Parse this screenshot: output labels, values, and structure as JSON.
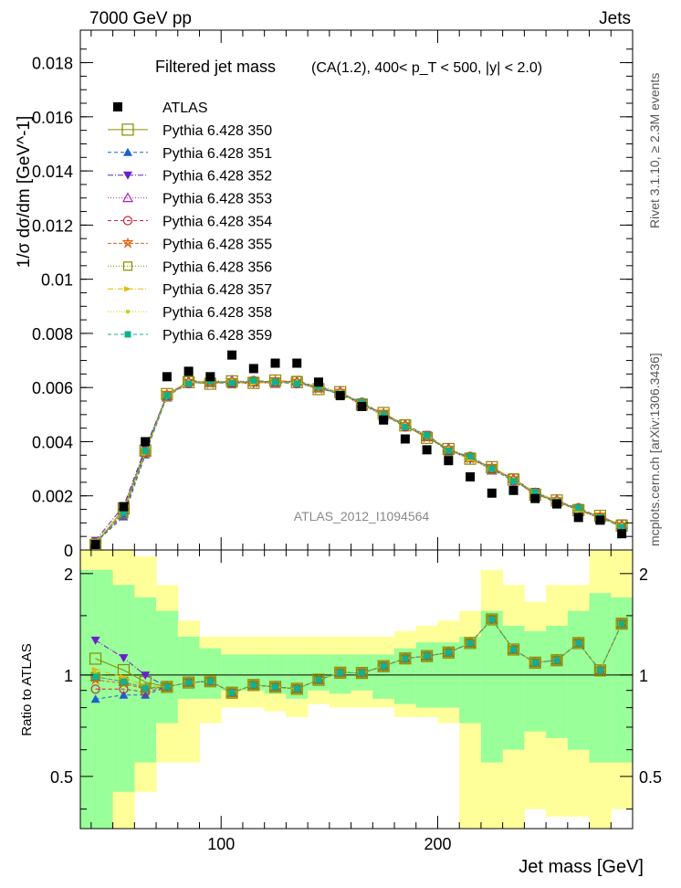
{
  "header": {
    "left": "7000 GeV pp",
    "right": "Jets",
    "side_rivet": "Rivet 3.1.10, ≥ 2.3M events",
    "side_mcplots": "mcplots.cern.ch [arXiv:1306.3436]"
  },
  "chart_data": {
    "type": "scatter",
    "title_main": "Filtered jet mass",
    "title_sub": "(CA(1.2), 400< p_T < 500, |y| < 2.0)",
    "watermark": "ATLAS_2012_I1094564",
    "xlabel": "Jet mass [GeV]",
    "ylabel": "1/σ dσ/dm [GeV^-1]",
    "ratio_ylabel": "Ratio to ATLAS",
    "xlim": [
      35,
      290
    ],
    "ylim": [
      0,
      0.0192
    ],
    "ratio_ylim": [
      0.35,
      2.35
    ],
    "x_ticks": [
      "100",
      "200"
    ],
    "y_ticks": [
      "0",
      "0.002",
      "0.004",
      "0.006",
      "0.008",
      "0.01",
      "0.012",
      "0.014",
      "0.016",
      "0.018"
    ],
    "ratio_ticks": [
      "0.5",
      "1",
      "2"
    ],
    "legend_placement": "top-left",
    "bins": [
      [
        35,
        50
      ],
      [
        50,
        60
      ],
      [
        60,
        70
      ],
      [
        70,
        80
      ],
      [
        80,
        90
      ],
      [
        90,
        100
      ],
      [
        100,
        110
      ],
      [
        110,
        120
      ],
      [
        120,
        130
      ],
      [
        130,
        140
      ],
      [
        140,
        150
      ],
      [
        150,
        160
      ],
      [
        160,
        170
      ],
      [
        170,
        180
      ],
      [
        180,
        190
      ],
      [
        190,
        200
      ],
      [
        200,
        210
      ],
      [
        210,
        220
      ],
      [
        220,
        230
      ],
      [
        230,
        240
      ],
      [
        240,
        250
      ],
      [
        250,
        260
      ],
      [
        260,
        270
      ],
      [
        270,
        280
      ],
      [
        280,
        290
      ]
    ],
    "x": [
      42,
      55,
      65,
      75,
      85,
      95,
      105,
      115,
      125,
      135,
      145,
      155,
      165,
      175,
      185,
      195,
      205,
      215,
      225,
      235,
      245,
      255,
      265,
      275,
      285
    ],
    "data": {
      "name": "ATLAS",
      "values": [
        0.0002,
        0.0016,
        0.004,
        0.0064,
        0.0066,
        0.0064,
        0.0072,
        0.0067,
        0.0069,
        0.0069,
        0.0062,
        0.0057,
        0.0053,
        0.0048,
        0.0041,
        0.0037,
        0.0033,
        0.0027,
        0.0021,
        0.0022,
        0.0019,
        0.0017,
        0.0012,
        0.0011,
        0.0006
      ]
    },
    "mc_base": [
      0.00025,
      0.0014,
      0.0036,
      0.0057,
      0.0062,
      0.0062,
      0.0062,
      0.0062,
      0.0062,
      0.0062,
      0.006,
      0.0058,
      0.0054,
      0.005,
      0.0046,
      0.0042,
      0.0037,
      0.0034,
      0.003,
      0.0026,
      0.0021,
      0.0018,
      0.0015,
      0.0012,
      0.0009
    ],
    "ratio_base": [
      1.0,
      0.95,
      0.92,
      0.91,
      0.95,
      0.97,
      0.88,
      0.94,
      0.91,
      0.91,
      0.98,
      1.01,
      1.02,
      1.05,
      1.12,
      1.15,
      1.16,
      1.25,
      1.45,
      1.19,
      1.1,
      1.1,
      1.25,
      1.02,
      1.42
    ],
    "series": [
      {
        "name": "Pythia 6.428 350",
        "color": "#8b8b00",
        "marker": "square-open",
        "dash": "",
        "offset": 1.13
      },
      {
        "name": "Pythia 6.428 351",
        "color": "#1f5fd0",
        "marker": "triangle-up",
        "dash": "4,3",
        "offset": 0.86
      },
      {
        "name": "Pythia 6.428 352",
        "color": "#6a1fd0",
        "marker": "triangle-down",
        "dash": "6,2,1,2",
        "offset": 1.28
      },
      {
        "name": "Pythia 6.428 353",
        "color": "#b020c0",
        "marker": "triangle-up-open",
        "dash": "1,2",
        "offset": 1.0
      },
      {
        "name": "Pythia 6.428 354",
        "color": "#d02040",
        "marker": "circle-open",
        "dash": "4,3",
        "offset": 0.92
      },
      {
        "name": "Pythia 6.428 355",
        "color": "#e06010",
        "marker": "star",
        "dash": "4,2",
        "offset": 0.98
      },
      {
        "name": "Pythia 6.428 356",
        "color": "#8b8b00",
        "marker": "square-open-small",
        "dash": "1,2",
        "offset": 1.0
      },
      {
        "name": "Pythia 6.428 357",
        "color": "#e8b800",
        "marker": "arrow",
        "dash": "6,2,1,2",
        "offset": 1.05
      },
      {
        "name": "Pythia 6.428 358",
        "color": "#c8d400",
        "marker": "dot",
        "dash": "1,2",
        "offset": 1.02
      },
      {
        "name": "Pythia 6.428 359",
        "color": "#10b090",
        "marker": "square-filled",
        "dash": "4,3",
        "offset": 1.0
      }
    ],
    "band_yellow": [
      [
        0.35,
        2.35
      ],
      [
        0.35,
        2.35
      ],
      [
        0.45,
        2.25
      ],
      [
        0.55,
        1.85
      ],
      [
        0.55,
        1.45
      ],
      [
        0.72,
        1.3
      ],
      [
        0.8,
        1.3
      ],
      [
        0.8,
        1.3
      ],
      [
        0.78,
        1.3
      ],
      [
        0.75,
        1.3
      ],
      [
        0.82,
        1.3
      ],
      [
        0.8,
        1.3
      ],
      [
        0.8,
        1.3
      ],
      [
        0.8,
        1.3
      ],
      [
        0.75,
        1.35
      ],
      [
        0.75,
        1.4
      ],
      [
        0.72,
        1.45
      ],
      [
        0.35,
        1.55
      ],
      [
        0.35,
        2.05
      ],
      [
        0.35,
        1.85
      ],
      [
        0.4,
        1.65
      ],
      [
        0.38,
        1.85
      ],
      [
        0.38,
        1.85
      ],
      [
        0.35,
        2.35
      ],
      [
        0.4,
        2.35
      ]
    ],
    "band_green": [
      [
        0.35,
        2.05
      ],
      [
        0.45,
        1.85
      ],
      [
        0.55,
        1.7
      ],
      [
        0.72,
        1.55
      ],
      [
        0.85,
        1.3
      ],
      [
        0.85,
        1.2
      ],
      [
        0.9,
        1.15
      ],
      [
        0.9,
        1.15
      ],
      [
        0.88,
        1.15
      ],
      [
        0.85,
        1.15
      ],
      [
        0.9,
        1.15
      ],
      [
        0.88,
        1.15
      ],
      [
        0.9,
        1.15
      ],
      [
        0.85,
        1.15
      ],
      [
        0.82,
        1.2
      ],
      [
        0.8,
        1.25
      ],
      [
        0.8,
        1.25
      ],
      [
        0.72,
        1.3
      ],
      [
        0.55,
        1.55
      ],
      [
        0.6,
        1.4
      ],
      [
        0.68,
        1.35
      ],
      [
        0.65,
        1.4
      ],
      [
        0.6,
        1.55
      ],
      [
        0.55,
        1.75
      ],
      [
        0.55,
        1.7
      ]
    ]
  }
}
